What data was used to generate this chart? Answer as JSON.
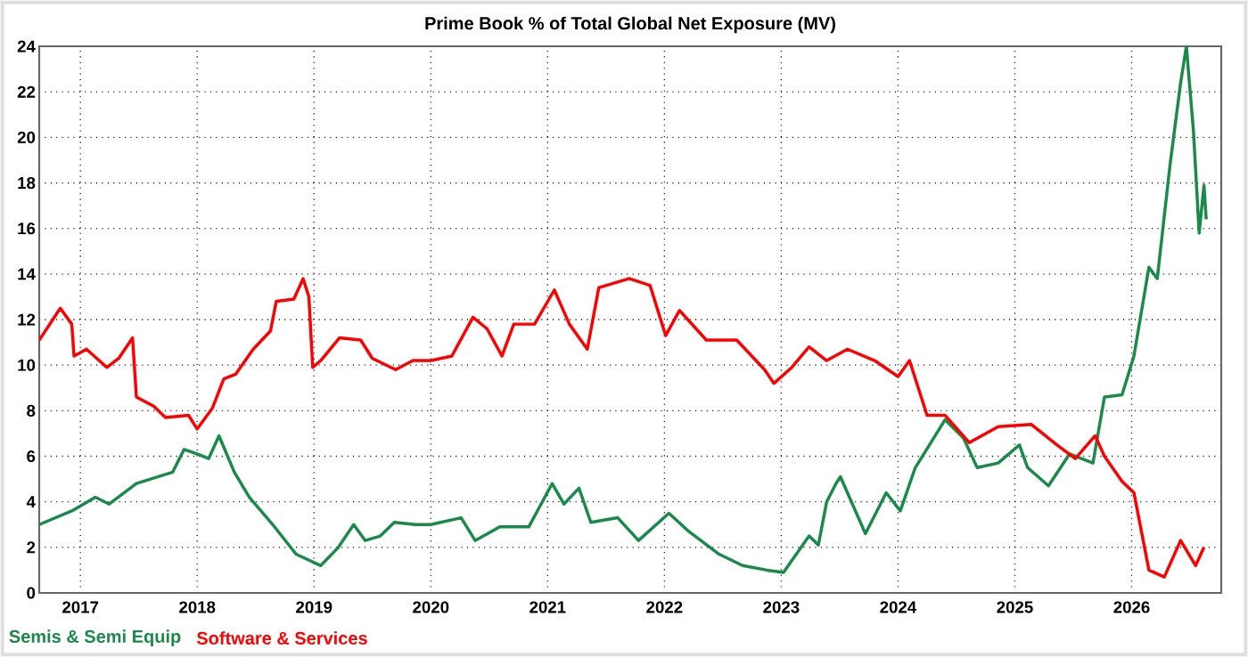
{
  "chart_data": {
    "type": "line",
    "title": "Prime Book % of Total Global Net Exposure (MV)",
    "xlim": [
      "2016-08-25",
      "2026-10-08"
    ],
    "ylim": [
      0,
      24
    ],
    "xticks": [
      {
        "value": "2017-01-01",
        "label": "2017"
      },
      {
        "value": "2018-01-01",
        "label": "2018"
      },
      {
        "value": "2019-01-01",
        "label": "2019"
      },
      {
        "value": "2020-01-01",
        "label": "2020"
      },
      {
        "value": "2021-01-01",
        "label": "2021"
      },
      {
        "value": "2022-01-01",
        "label": "2022"
      },
      {
        "value": "2023-01-01",
        "label": "2023"
      },
      {
        "value": "2024-01-01",
        "label": "2024"
      },
      {
        "value": "2025-01-01",
        "label": "2025"
      },
      {
        "value": "2026-01-01",
        "label": "2026"
      }
    ],
    "yticks": [
      0,
      2,
      4,
      6,
      8,
      10,
      12,
      14,
      16,
      18,
      20,
      22,
      24
    ],
    "grid": true,
    "legend": "bottom left",
    "line_style": "solid",
    "series": [
      {
        "name": "Semis & Semi Equip",
        "color": "#1a8a4a",
        "x": [
          "2016-08-25",
          "2016-12-05",
          "2017-02-17",
          "2017-04-01",
          "2017-06-25",
          "2017-10-16",
          "2017-11-21",
          "2018-01-01",
          "2018-02-06",
          "2018-03-10",
          "2018-04-27",
          "2018-06-13",
          "2018-08-25",
          "2018-11-06",
          "2019-01-22",
          "2019-03-18",
          "2019-05-05",
          "2019-06-10",
          "2019-07-27",
          "2019-09-09",
          "2019-11-14",
          "2020-01-01",
          "2020-04-05",
          "2020-05-19",
          "2020-08-04",
          "2020-11-03",
          "2021-01-15",
          "2021-02-21",
          "2021-04-09",
          "2021-05-16",
          "2021-08-08",
          "2021-10-12",
          "2022-01-15",
          "2022-03-18",
          "2022-06-21",
          "2022-09-02",
          "2022-11-17",
          "2023-01-08",
          "2023-03-29",
          "2023-04-27",
          "2023-05-23",
          "2023-06-21",
          "2023-07-05",
          "2023-09-21",
          "2023-11-25",
          "2024-01-08",
          "2024-02-24",
          "2024-04-13",
          "2024-05-27",
          "2024-07-24",
          "2024-09-05",
          "2024-11-10",
          "2025-01-15",
          "2025-02-10",
          "2025-04-16",
          "2025-06-21",
          "2025-09-02",
          "2025-10-08",
          "2025-12-02",
          "2026-01-08",
          "2026-02-24",
          "2026-03-22",
          "2026-05-01",
          "2026-06-03",
          "2026-06-21",
          "2026-07-13",
          "2026-07-31",
          "2026-08-15",
          "2026-08-22"
        ],
        "values": [
          3.0,
          3.6,
          4.2,
          3.9,
          4.8,
          5.3,
          6.3,
          6.1,
          5.9,
          6.9,
          5.3,
          4.2,
          3.0,
          1.7,
          1.2,
          2.0,
          3.0,
          2.3,
          2.5,
          3.1,
          3.0,
          3.0,
          3.3,
          2.3,
          2.9,
          2.9,
          4.8,
          3.9,
          4.6,
          3.1,
          3.3,
          2.3,
          3.5,
          2.7,
          1.7,
          1.2,
          1.0,
          0.9,
          2.5,
          2.1,
          4.0,
          4.8,
          5.1,
          2.6,
          4.4,
          3.6,
          5.5,
          6.6,
          7.6,
          6.8,
          5.5,
          5.7,
          6.5,
          5.5,
          4.7,
          6.1,
          5.7,
          8.6,
          8.7,
          10.4,
          14.3,
          13.8,
          18.8,
          22.4,
          24.0,
          20.3,
          15.8,
          17.9,
          16.4
        ]
      },
      {
        "name": "Software & Services",
        "color": "#ff0000",
        "x": [
          "2016-08-25",
          "2016-10-30",
          "2016-12-05",
          "2016-12-12",
          "2017-01-20",
          "2017-03-25",
          "2017-05-01",
          "2017-06-13",
          "2017-06-25",
          "2017-08-18",
          "2017-09-24",
          "2017-12-05",
          "2018-01-01",
          "2018-02-17",
          "2018-03-25",
          "2018-05-01",
          "2018-06-25",
          "2018-08-18",
          "2018-09-05",
          "2018-10-30",
          "2018-11-28",
          "2018-12-16",
          "2018-12-28",
          "2019-01-22",
          "2019-03-22",
          "2019-05-27",
          "2019-07-02",
          "2019-09-13",
          "2019-11-06",
          "2020-01-01",
          "2020-03-07",
          "2020-05-12",
          "2020-06-25",
          "2020-08-11",
          "2020-09-17",
          "2020-11-21",
          "2021-01-22",
          "2021-03-10",
          "2021-05-05",
          "2021-06-10",
          "2021-09-13",
          "2021-11-17",
          "2022-01-05",
          "2022-02-17",
          "2022-05-12",
          "2022-08-15",
          "2022-11-10",
          "2022-12-09",
          "2023-02-03",
          "2023-03-29",
          "2023-05-23",
          "2023-07-27",
          "2023-10-20",
          "2024-01-01",
          "2024-02-06",
          "2024-04-01",
          "2024-05-27",
          "2024-08-11",
          "2024-11-10",
          "2025-02-21",
          "2025-05-12",
          "2025-07-09",
          "2025-09-09",
          "2025-10-08",
          "2025-12-02",
          "2026-01-08",
          "2026-02-24",
          "2026-04-13",
          "2026-06-03",
          "2026-07-20",
          "2026-08-15"
        ],
        "values": [
          11.1,
          12.5,
          11.8,
          10.4,
          10.7,
          9.9,
          10.3,
          11.2,
          8.6,
          8.2,
          7.7,
          7.8,
          7.2,
          8.1,
          9.4,
          9.6,
          10.7,
          11.5,
          12.8,
          12.9,
          13.8,
          13.0,
          9.9,
          10.2,
          11.2,
          11.1,
          10.3,
          9.8,
          10.2,
          10.2,
          10.4,
          12.1,
          11.6,
          10.4,
          11.8,
          11.8,
          13.3,
          11.8,
          10.7,
          13.4,
          13.8,
          13.5,
          11.3,
          12.4,
          11.1,
          11.1,
          9.8,
          9.2,
          9.9,
          10.8,
          10.2,
          10.7,
          10.2,
          9.5,
          10.2,
          7.8,
          7.8,
          6.6,
          7.3,
          7.4,
          6.5,
          5.9,
          6.9,
          6.0,
          4.9,
          4.4,
          1.0,
          0.7,
          2.3,
          1.2,
          2.0
        ]
      }
    ]
  }
}
